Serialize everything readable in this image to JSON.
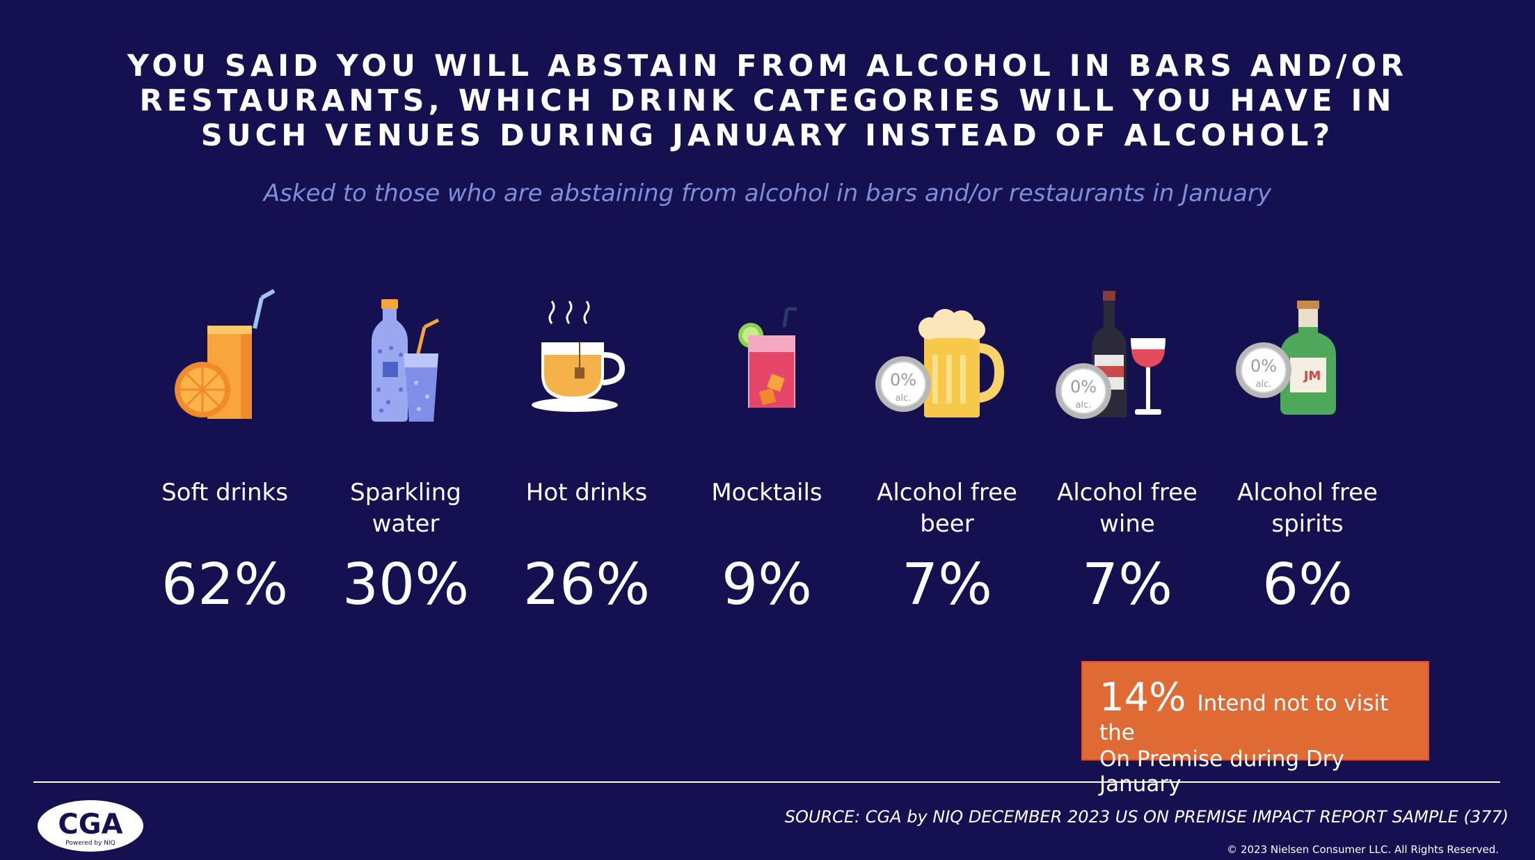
{
  "header": {
    "title_line1": "YOU SAID YOU WILL ABSTAIN FROM ALCOHOL IN BARS AND/OR",
    "title_line2": "RESTAURANTS, WHICH DRINK CATEGORIES WILL YOU HAVE IN",
    "title_line3": "SUCH VENUES DURING JANUARY INSTEAD OF ALCOHOL?",
    "subtitle": "Asked to those who are abstaining from alcohol in bars and/or restaurants in January"
  },
  "categories": [
    {
      "label_line1": "Soft drinks",
      "label_line2": "",
      "value": "62%",
      "icon": "soft-drink-icon"
    },
    {
      "label_line1": "Sparkling",
      "label_line2": "water",
      "value": "30%",
      "icon": "sparkling-water-icon"
    },
    {
      "label_line1": "Hot drinks",
      "label_line2": "",
      "value": "26%",
      "icon": "hot-drink-icon"
    },
    {
      "label_line1": "Mocktails",
      "label_line2": "",
      "value": "9%",
      "icon": "mocktail-icon"
    },
    {
      "label_line1": "Alcohol free",
      "label_line2": "beer",
      "value": "7%",
      "icon": "alcohol-free-beer-icon"
    },
    {
      "label_line1": "Alcohol free",
      "label_line2": "wine",
      "value": "7%",
      "icon": "alcohol-free-wine-icon"
    },
    {
      "label_line1": "Alcohol free",
      "label_line2": "spirits",
      "value": "6%",
      "icon": "alcohol-free-spirits-icon"
    }
  ],
  "badge": {
    "zero_pct": "0%",
    "alc": "alc.",
    "bottle_label": "JM"
  },
  "callout": {
    "value": "14%",
    "text_line1": "Intend not to visit the",
    "text_line2": "On Premise during Dry January"
  },
  "footer": {
    "logo_text": "CGA",
    "logo_sub": "Powered by NIQ",
    "source": "SOURCE: CGA by NIQ DECEMBER 2023 US ON PREMISE IMPACT REPORT SAMPLE (377)",
    "copyright": "© 2023 Nielsen Consumer LLC. All Rights Reserved."
  },
  "colors": {
    "background": "#15104f",
    "subtitle": "#7c8fd8",
    "callout": "#e06a34"
  }
}
